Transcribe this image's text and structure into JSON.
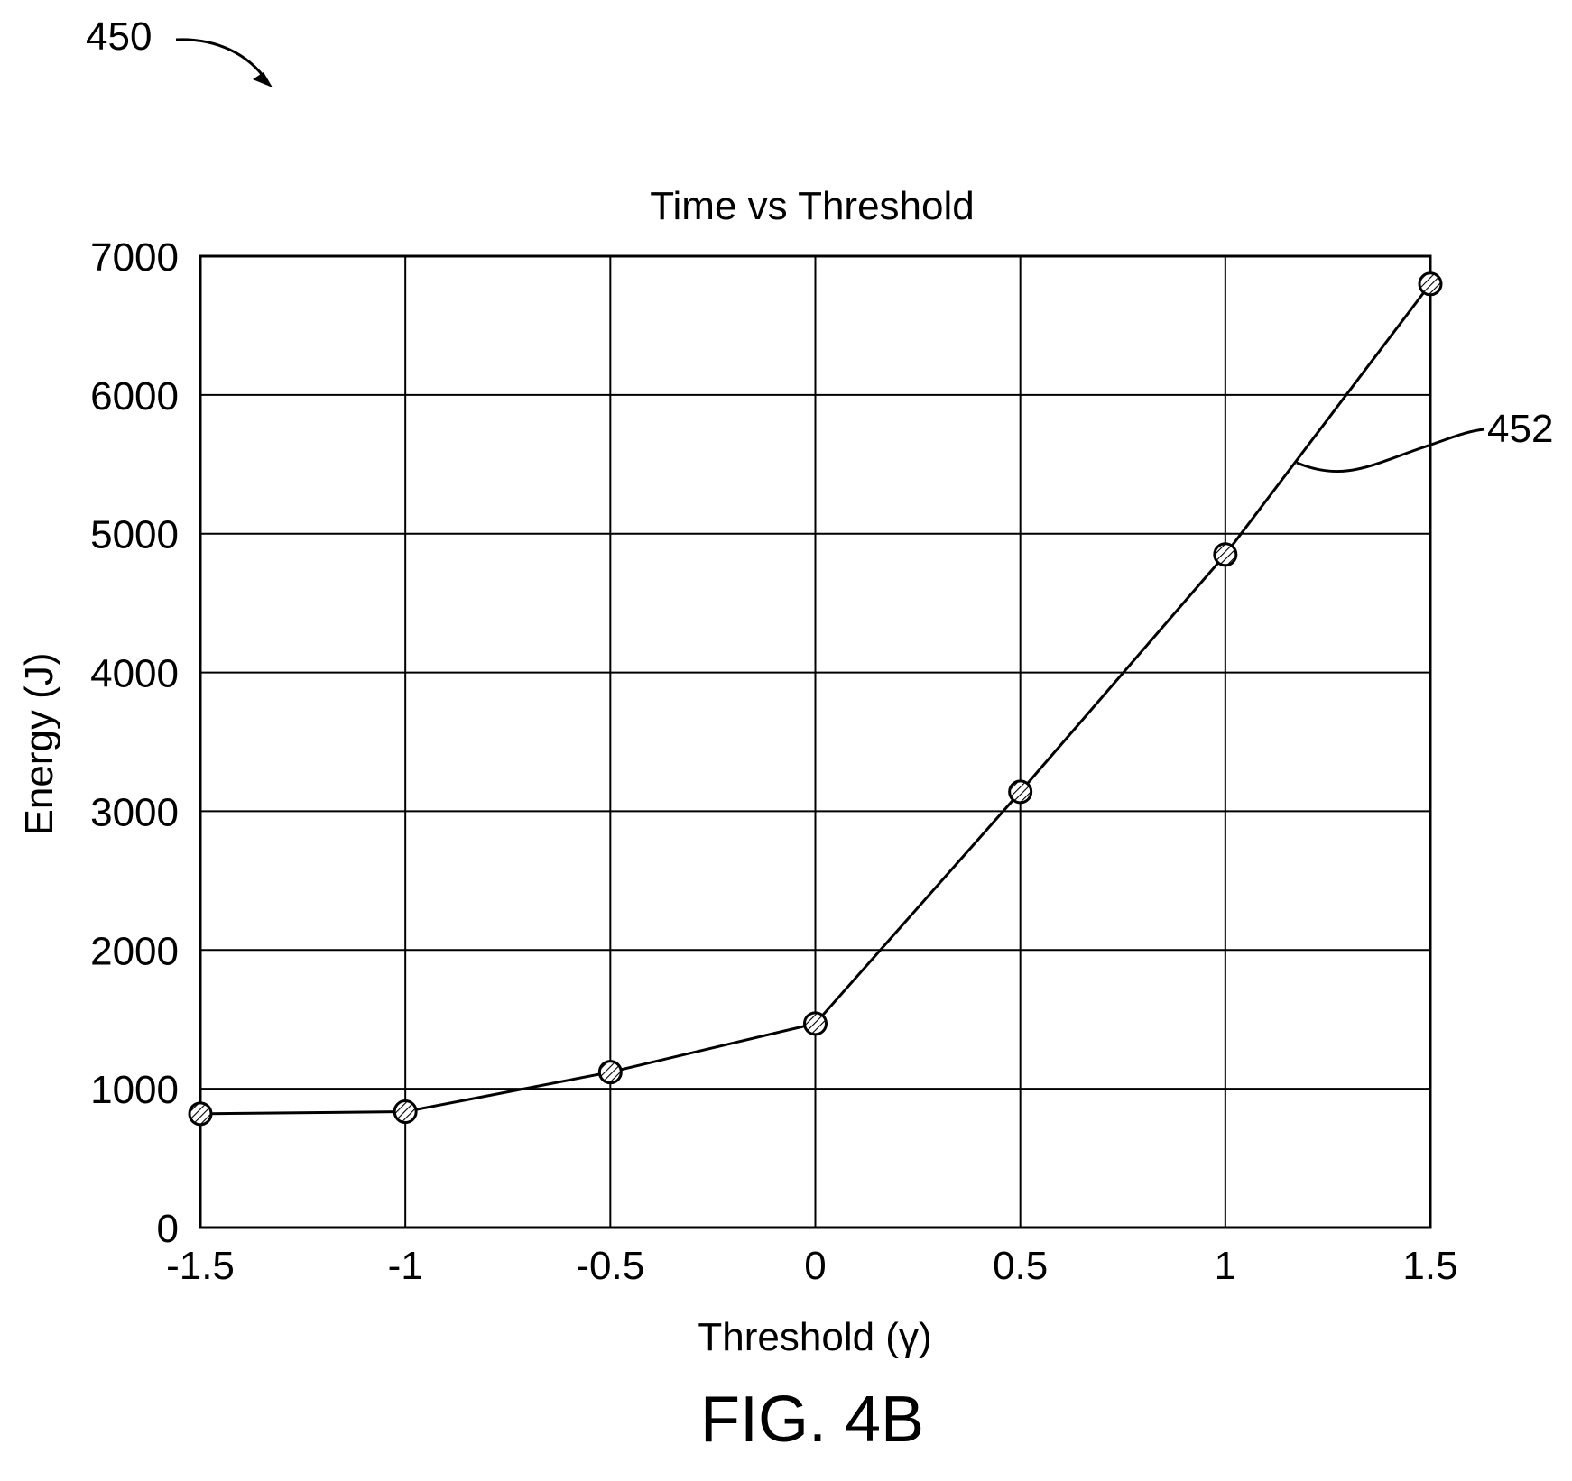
{
  "figure": {
    "ref_label": "450",
    "caption": "FIG. 4B",
    "line_ref_label": "452"
  },
  "colors": {
    "ink": "#000000",
    "background": "#ffffff",
    "marker_fill": "#ffffff"
  },
  "chart_data": {
    "type": "line",
    "title": "Time vs Threshold",
    "xlabel": "Threshold (γ)",
    "ylabel": "Energy (J)",
    "xlim": [
      -1.5,
      1.5
    ],
    "ylim": [
      0,
      7000
    ],
    "x_ticks": [
      -1.5,
      -1,
      -0.5,
      0,
      0.5,
      1,
      1.5
    ],
    "x_tick_labels": [
      "-1.5",
      "-1",
      "-0.5",
      "0",
      "0.5",
      "1",
      "1.5"
    ],
    "y_ticks": [
      0,
      1000,
      2000,
      3000,
      4000,
      5000,
      6000,
      7000
    ],
    "y_tick_labels": [
      "0",
      "1000",
      "2000",
      "3000",
      "4000",
      "5000",
      "6000",
      "7000"
    ],
    "grid": true,
    "marker": "hatched-circle",
    "series": [
      {
        "x": [
          -1.5,
          -1,
          -0.5,
          0,
          0.5,
          1,
          1.5
        ],
        "y": [
          820,
          835,
          1120,
          1470,
          3140,
          4850,
          6800
        ]
      }
    ]
  }
}
